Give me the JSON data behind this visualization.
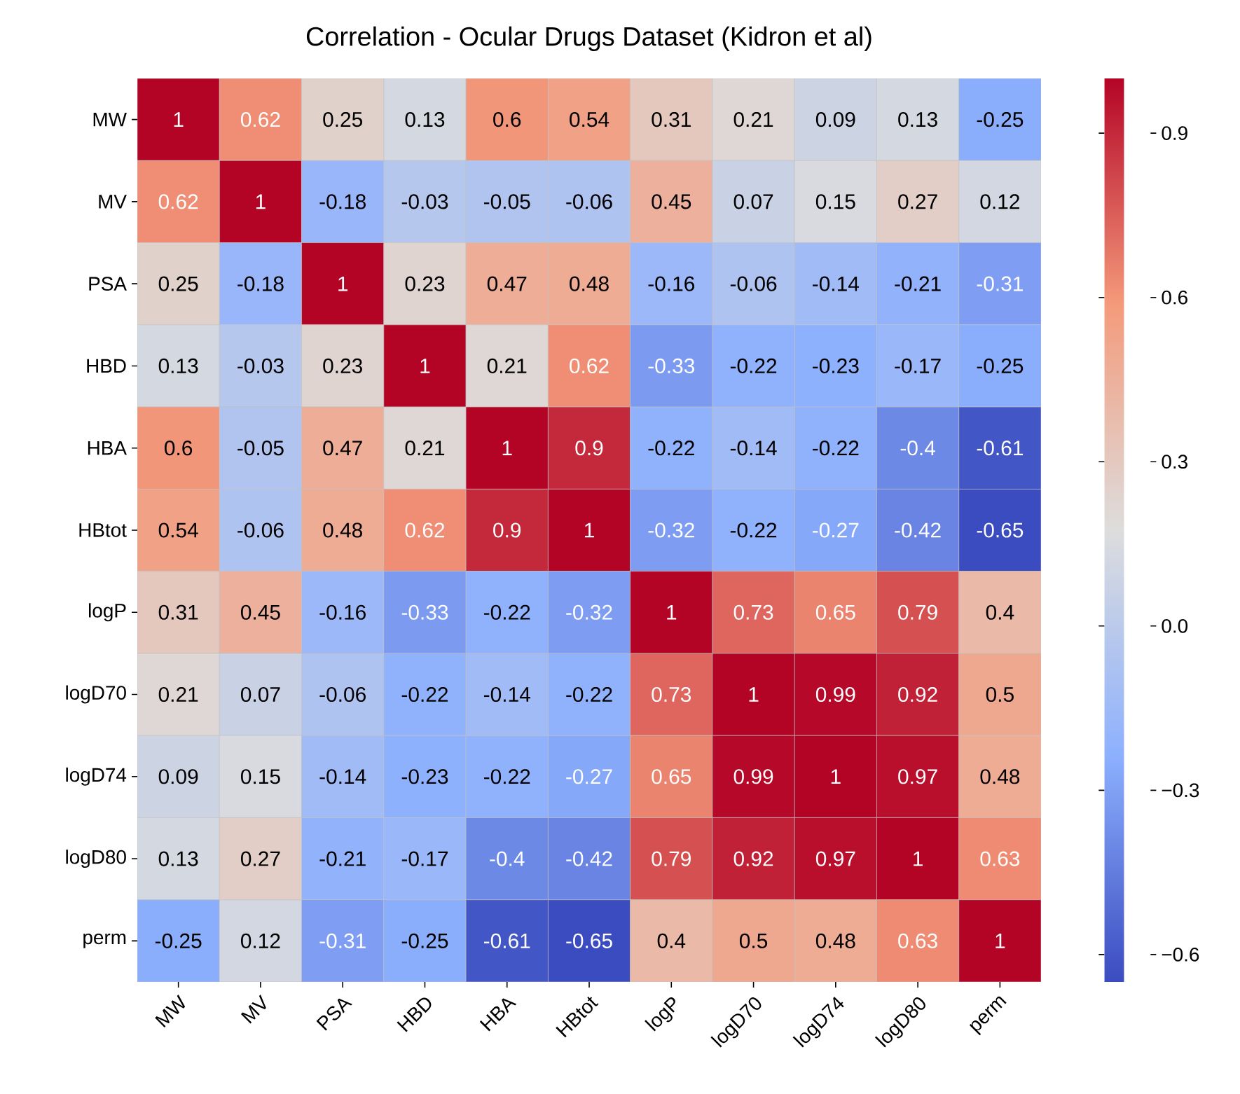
{
  "chart_data": {
    "type": "heatmap",
    "title": "Correlation - Ocular Drugs Dataset (Kidron et al)",
    "categories": [
      "MW",
      "MV",
      "PSA",
      "HBD",
      "HBA",
      "HBtot",
      "logP",
      "logD70",
      "logD74",
      "logD80",
      "perm"
    ],
    "y_categories": [
      "MW",
      "MV",
      "PSA",
      "HBD",
      "HBA",
      "HBtot",
      "logP",
      "logD70",
      "logD74",
      "logD80",
      "perm"
    ],
    "cells": [
      [
        1,
        0.62,
        0.25,
        0.13,
        0.6,
        0.54,
        0.31,
        0.21,
        0.09,
        0.13,
        -0.25
      ],
      [
        0.62,
        1,
        -0.18,
        -0.03,
        -0.05,
        -0.06,
        0.45,
        0.07,
        0.15,
        0.27,
        0.12
      ],
      [
        0.25,
        -0.18,
        1,
        0.23,
        0.47,
        0.48,
        -0.16,
        -0.06,
        -0.14,
        -0.21,
        -0.31
      ],
      [
        0.13,
        -0.03,
        0.23,
        1,
        0.21,
        0.62,
        -0.33,
        -0.22,
        -0.23,
        -0.17,
        -0.25
      ],
      [
        0.6,
        -0.05,
        0.47,
        0.21,
        1,
        0.9,
        -0.22,
        -0.14,
        -0.22,
        -0.4,
        -0.61
      ],
      [
        0.54,
        -0.06,
        0.48,
        0.62,
        0.9,
        1,
        -0.32,
        -0.22,
        -0.27,
        -0.42,
        -0.65
      ],
      [
        0.31,
        0.45,
        -0.16,
        -0.33,
        -0.22,
        -0.32,
        1,
        0.73,
        0.65,
        0.79,
        0.4
      ],
      [
        0.21,
        0.07,
        -0.06,
        -0.22,
        -0.14,
        -0.22,
        0.73,
        1,
        0.99,
        0.92,
        0.5
      ],
      [
        0.09,
        0.15,
        -0.14,
        -0.23,
        -0.22,
        -0.27,
        0.65,
        0.99,
        1,
        0.97,
        0.48
      ],
      [
        0.13,
        0.27,
        -0.21,
        -0.17,
        -0.4,
        -0.42,
        0.79,
        0.92,
        0.97,
        1,
        0.63
      ],
      [
        -0.25,
        0.12,
        -0.31,
        -0.25,
        -0.61,
        -0.65,
        0.4,
        0.5,
        0.48,
        0.63,
        1
      ]
    ],
    "clim": [
      -0.65,
      1
    ],
    "cticks": [
      {
        "value": -0.6,
        "label": "−0.6"
      },
      {
        "value": -0.3,
        "label": "−0.3"
      },
      {
        "value": 0,
        "label": "0.0"
      },
      {
        "value": 0.3,
        "label": "0.3"
      },
      {
        "value": 0.6,
        "label": "0.6"
      },
      {
        "value": 0.9,
        "label": "0.9"
      }
    ],
    "data_labels": true
  }
}
